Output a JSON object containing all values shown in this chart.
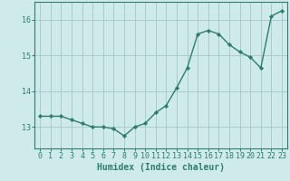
{
  "x": [
    0,
    1,
    2,
    3,
    4,
    5,
    6,
    7,
    8,
    9,
    10,
    11,
    12,
    13,
    14,
    15,
    16,
    17,
    18,
    19,
    20,
    21,
    22,
    23
  ],
  "y": [
    13.3,
    13.3,
    13.3,
    13.2,
    13.1,
    13.0,
    13.0,
    12.95,
    12.75,
    13.0,
    13.1,
    13.4,
    13.6,
    14.1,
    14.65,
    15.6,
    15.7,
    15.6,
    15.3,
    15.1,
    14.95,
    14.65,
    16.1,
    16.25
  ],
  "line_color": "#2e7d6c",
  "marker": "D",
  "marker_size": 2.2,
  "line_width": 1.0,
  "bg_color": "#ceeaea",
  "grid_color": "#aacccc",
  "tick_color": "#2e7d6c",
  "xlabel": "Humidex (Indice chaleur)",
  "xlabel_fontsize": 7,
  "xlabel_color": "#2e7d6c",
  "ylabel_ticks": [
    13,
    14,
    15,
    16
  ],
  "ylim": [
    12.4,
    16.5
  ],
  "xlim": [
    -0.5,
    23.5
  ],
  "xticks": [
    0,
    1,
    2,
    3,
    4,
    5,
    6,
    7,
    8,
    9,
    10,
    11,
    12,
    13,
    14,
    15,
    16,
    17,
    18,
    19,
    20,
    21,
    22,
    23
  ],
  "tick_fontsize": 6
}
